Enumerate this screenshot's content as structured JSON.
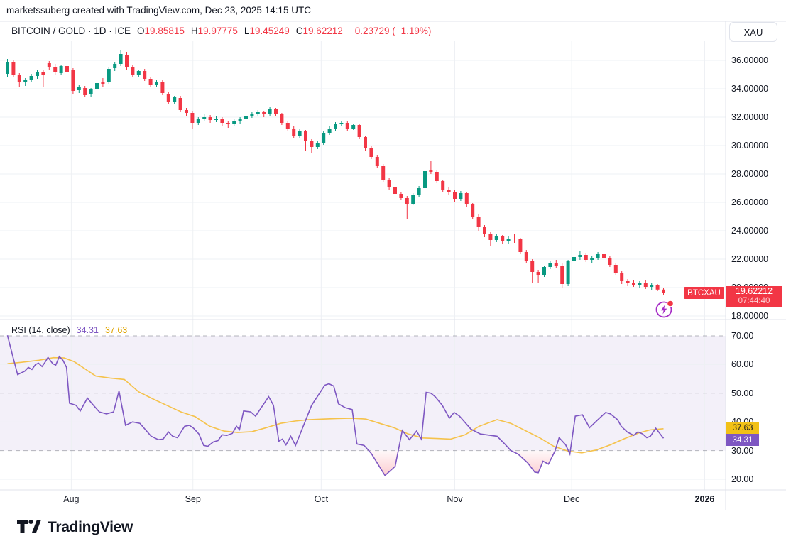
{
  "watermark": "marketssuberg created with TradingView.com, Dec 23, 2025 14:15 UTC",
  "legend": {
    "symbol": "BITCOIN / GOLD · 1D · ICE",
    "o_label": "O",
    "o": "19.85815",
    "h_label": "H",
    "h": "19.97775",
    "l_label": "L",
    "l": "19.45249",
    "c_label": "C",
    "c": "19.62212",
    "change": "−0.23729 (−1.19%)"
  },
  "price_axis": {
    "unit_button": "XAU",
    "symbol_pill": "BTCXAU",
    "last_price": "19.62212",
    "countdown": "07:44:40"
  },
  "rsi_pane": {
    "title": "RSI (14, close)",
    "value": "34.31",
    "ma_value": "37.63"
  },
  "footer": {
    "brand": "TradingView"
  },
  "colors": {
    "up": "#089981",
    "down": "#F23645",
    "rsi_line": "#7E57C2",
    "rsi_ma_line": "#F5C24B",
    "rsi_band_fill": "rgba(126,87,194,0.09)",
    "grid": "#EEF0F4",
    "border": "#E0E3EB",
    "price_line": "#F23645",
    "text": "#131722"
  },
  "chart_data": {
    "type": "candlestick_with_rsi",
    "symbol": "BITCOIN / GOLD",
    "interval": "1D",
    "exchange": "ICE",
    "last_close": 19.62212,
    "price_axis_ticks": [
      "36.00000",
      "34.00000",
      "32.00000",
      "30.00000",
      "28.00000",
      "26.00000",
      "24.00000",
      "22.00000",
      "20.00000",
      "18.00000"
    ],
    "rsi_axis_ticks": [
      "70.00",
      "60.00",
      "50.00",
      "40.00",
      "30.00",
      "20.00"
    ],
    "time_axis": [
      {
        "text": "Aug",
        "i": 10.7,
        "bold": false
      },
      {
        "text": "Sep",
        "i": 31.1,
        "bold": false
      },
      {
        "text": "Oct",
        "i": 52.6,
        "bold": false
      },
      {
        "text": "Nov",
        "i": 75.0,
        "bold": false
      },
      {
        "text": "Dec",
        "i": 94.6,
        "bold": false
      },
      {
        "text": "2026",
        "i": 116.9,
        "bold": true
      }
    ],
    "candles": [
      [
        35.05,
        36.1,
        34.85,
        35.85
      ],
      [
        35.85,
        36.05,
        34.8,
        35.0
      ],
      [
        35.0,
        35.1,
        34.15,
        34.45
      ],
      [
        34.45,
        34.75,
        34.2,
        34.6
      ],
      [
        34.6,
        35.05,
        34.45,
        34.9
      ],
      [
        34.9,
        35.3,
        34.7,
        35.15
      ],
      [
        35.15,
        35.35,
        34.15,
        35.0
      ],
      [
        35.8,
        35.95,
        35.3,
        35.5
      ],
      [
        35.55,
        35.75,
        35.0,
        35.2
      ],
      [
        35.1,
        35.7,
        34.95,
        35.6
      ],
      [
        35.6,
        35.75,
        35.05,
        35.2
      ],
      [
        35.3,
        35.45,
        33.6,
        33.85
      ],
      [
        33.9,
        34.25,
        33.7,
        34.1
      ],
      [
        34.05,
        34.2,
        33.4,
        33.55
      ],
      [
        33.6,
        34.05,
        33.45,
        33.95
      ],
      [
        34.0,
        34.5,
        33.85,
        34.4
      ],
      [
        34.45,
        34.75,
        34.1,
        34.35
      ],
      [
        34.5,
        35.5,
        34.35,
        35.4
      ],
      [
        35.45,
        35.85,
        35.25,
        35.75
      ],
      [
        35.75,
        36.75,
        35.6,
        36.45
      ],
      [
        36.4,
        36.6,
        35.3,
        35.5
      ],
      [
        35.5,
        35.65,
        34.8,
        34.95
      ],
      [
        34.95,
        35.35,
        34.8,
        35.25
      ],
      [
        35.25,
        35.4,
        34.55,
        34.7
      ],
      [
        34.7,
        34.85,
        34.1,
        34.25
      ],
      [
        34.25,
        34.6,
        34.1,
        34.5
      ],
      [
        34.5,
        34.6,
        33.55,
        33.7
      ],
      [
        33.65,
        33.8,
        32.95,
        33.1
      ],
      [
        33.1,
        33.5,
        32.95,
        33.4
      ],
      [
        33.35,
        33.5,
        32.35,
        32.5
      ],
      [
        32.5,
        32.65,
        32.05,
        32.3
      ],
      [
        32.3,
        32.4,
        31.15,
        31.6
      ],
      [
        31.6,
        32.0,
        31.45,
        31.9
      ],
      [
        31.9,
        32.2,
        31.75,
        32.0
      ],
      [
        32.0,
        32.15,
        31.6,
        31.8
      ],
      [
        31.8,
        32.1,
        31.65,
        31.9
      ],
      [
        31.9,
        32.0,
        31.4,
        31.6
      ],
      [
        31.6,
        31.75,
        31.25,
        31.5
      ],
      [
        31.5,
        31.85,
        31.35,
        31.7
      ],
      [
        31.7,
        32.0,
        31.55,
        31.85
      ],
      [
        31.85,
        32.25,
        31.7,
        32.1
      ],
      [
        32.1,
        32.35,
        31.95,
        32.2
      ],
      [
        32.2,
        32.5,
        32.05,
        32.35
      ],
      [
        32.35,
        32.45,
        32.0,
        32.2
      ],
      [
        32.2,
        32.7,
        32.05,
        32.55
      ],
      [
        32.55,
        32.65,
        32.05,
        32.2
      ],
      [
        32.2,
        32.3,
        31.45,
        31.6
      ],
      [
        31.6,
        31.75,
        31.05,
        31.2
      ],
      [
        31.2,
        31.35,
        30.5,
        30.7
      ],
      [
        30.7,
        31.15,
        30.55,
        31.0
      ],
      [
        31.0,
        31.1,
        29.6,
        30.3
      ],
      [
        30.3,
        30.45,
        29.5,
        29.9
      ],
      [
        29.9,
        30.35,
        29.75,
        30.15
      ],
      [
        30.15,
        31.0,
        30.05,
        30.9
      ],
      [
        30.9,
        31.35,
        30.75,
        31.2
      ],
      [
        31.2,
        31.65,
        31.05,
        31.5
      ],
      [
        31.5,
        31.75,
        31.35,
        31.6
      ],
      [
        31.6,
        31.7,
        31.05,
        31.2
      ],
      [
        31.2,
        31.55,
        31.1,
        31.45
      ],
      [
        31.45,
        31.55,
        30.45,
        30.6
      ],
      [
        30.6,
        30.7,
        29.65,
        29.8
      ],
      [
        29.8,
        29.95,
        29.05,
        29.2
      ],
      [
        29.2,
        29.35,
        28.4,
        28.55
      ],
      [
        28.55,
        28.7,
        27.45,
        27.6
      ],
      [
        27.6,
        27.75,
        26.9,
        27.05
      ],
      [
        27.05,
        27.2,
        26.45,
        26.6
      ],
      [
        26.6,
        26.75,
        26.15,
        26.3
      ],
      [
        26.3,
        26.45,
        24.8,
        25.9
      ],
      [
        25.9,
        26.65,
        25.8,
        26.5
      ],
      [
        26.5,
        27.15,
        26.4,
        27.0
      ],
      [
        27.0,
        28.5,
        26.9,
        28.2
      ],
      [
        28.25,
        28.9,
        28.0,
        28.15
      ],
      [
        28.15,
        28.25,
        27.35,
        27.5
      ],
      [
        27.5,
        27.6,
        26.75,
        26.9
      ],
      [
        26.9,
        27.1,
        26.55,
        26.7
      ],
      [
        26.7,
        26.9,
        26.05,
        26.25
      ],
      [
        26.25,
        26.8,
        26.1,
        26.65
      ],
      [
        26.65,
        26.75,
        25.7,
        25.85
      ],
      [
        25.85,
        25.95,
        24.85,
        25.0
      ],
      [
        25.0,
        25.15,
        23.95,
        24.3
      ],
      [
        24.3,
        24.4,
        23.55,
        23.75
      ],
      [
        23.75,
        23.9,
        22.95,
        23.35
      ],
      [
        23.35,
        23.75,
        23.2,
        23.6
      ],
      [
        23.6,
        23.7,
        23.1,
        23.25
      ],
      [
        23.25,
        23.65,
        23.05,
        23.45
      ],
      [
        23.45,
        23.75,
        23.15,
        23.4
      ],
      [
        23.4,
        23.5,
        22.35,
        22.5
      ],
      [
        22.5,
        22.65,
        21.75,
        21.9
      ],
      [
        21.9,
        22.0,
        20.35,
        21.1
      ],
      [
        21.1,
        21.25,
        20.3,
        20.9
      ],
      [
        20.9,
        21.55,
        20.75,
        21.45
      ],
      [
        21.45,
        21.9,
        21.3,
        21.75
      ],
      [
        21.75,
        21.95,
        21.4,
        21.55
      ],
      [
        21.55,
        21.7,
        19.95,
        20.25
      ],
      [
        20.25,
        21.95,
        20.1,
        21.85
      ],
      [
        21.85,
        22.3,
        21.7,
        22.15
      ],
      [
        22.15,
        22.6,
        21.95,
        22.3
      ],
      [
        22.3,
        22.45,
        21.8,
        21.95
      ],
      [
        21.95,
        22.2,
        21.7,
        22.1
      ],
      [
        22.1,
        22.5,
        21.95,
        22.35
      ],
      [
        22.35,
        22.55,
        21.9,
        22.05
      ],
      [
        22.05,
        22.2,
        21.45,
        21.6
      ],
      [
        21.6,
        21.75,
        20.9,
        21.05
      ],
      [
        21.05,
        21.2,
        20.25,
        20.45
      ],
      [
        20.45,
        20.6,
        20.1,
        20.3
      ],
      [
        20.3,
        20.55,
        20.05,
        20.2
      ],
      [
        20.2,
        20.45,
        20.0,
        20.35
      ],
      [
        20.35,
        20.5,
        19.9,
        20.05
      ],
      [
        20.05,
        20.3,
        19.85,
        20.15
      ],
      [
        20.15,
        20.25,
        19.75,
        19.86
      ],
      [
        19.86,
        19.98,
        19.45,
        19.62
      ]
    ],
    "rsi": {
      "period": 14,
      "source": "close",
      "last": 34.31,
      "ma_last": 37.63,
      "levels": {
        "upper": 70,
        "middle": 50,
        "lower": 30
      },
      "points": [
        [
          0,
          70.2
        ],
        [
          1,
          62
        ],
        [
          1.7,
          56.5
        ],
        [
          2.9,
          57.7
        ],
        [
          3.5,
          59
        ],
        [
          4.1,
          58.3
        ],
        [
          4.7,
          60
        ],
        [
          5.2,
          60.5
        ],
        [
          5.8,
          59.3
        ],
        [
          6.3,
          60.8
        ],
        [
          6.8,
          62.5
        ],
        [
          7.6,
          60.3
        ],
        [
          8.1,
          59.8
        ],
        [
          8.7,
          62.8
        ],
        [
          9.3,
          61.5
        ],
        [
          9.9,
          59
        ],
        [
          10.4,
          46.5
        ],
        [
          11.5,
          45.8
        ],
        [
          12.2,
          43.8
        ],
        [
          13.4,
          48.3
        ],
        [
          14.2,
          46.3
        ],
        [
          15.4,
          43.5
        ],
        [
          16.6,
          42.8
        ],
        [
          17.8,
          43.5
        ],
        [
          18.7,
          50.8
        ],
        [
          19.8,
          38.8
        ],
        [
          21,
          40
        ],
        [
          22.2,
          39.5
        ],
        [
          24.1,
          35
        ],
        [
          25.3,
          33.8
        ],
        [
          26.1,
          34
        ],
        [
          27,
          36.5
        ],
        [
          27.7,
          35
        ],
        [
          28.5,
          34.5
        ],
        [
          29.7,
          38.5
        ],
        [
          30.5,
          38.8
        ],
        [
          31.2,
          37.8
        ],
        [
          32.1,
          35.8
        ],
        [
          32.9,
          31.8
        ],
        [
          33.6,
          31.5
        ],
        [
          34.5,
          33
        ],
        [
          35.3,
          33.5
        ],
        [
          36,
          35.5
        ],
        [
          36.8,
          35.3
        ],
        [
          37.7,
          36
        ],
        [
          38.4,
          38.5
        ],
        [
          38.9,
          37.3
        ],
        [
          39.6,
          43.8
        ],
        [
          40.8,
          43.5
        ],
        [
          41.6,
          42
        ],
        [
          43.8,
          48.8
        ],
        [
          44.6,
          45.8
        ],
        [
          45.5,
          33.3
        ],
        [
          46.1,
          34
        ],
        [
          46.7,
          32
        ],
        [
          47.5,
          35
        ],
        [
          48.3,
          31.8
        ],
        [
          49.4,
          37.5
        ],
        [
          51,
          45.8
        ],
        [
          53.2,
          52.8
        ],
        [
          53.9,
          53.3
        ],
        [
          54.7,
          52.5
        ],
        [
          55.5,
          46.3
        ],
        [
          56.6,
          45
        ],
        [
          57.8,
          44.3
        ],
        [
          58.6,
          32.3
        ],
        [
          59.8,
          31.8
        ],
        [
          61,
          29
        ],
        [
          63.3,
          21.3
        ],
        [
          65,
          24.5
        ],
        [
          66.2,
          37
        ],
        [
          67.4,
          33.8
        ],
        [
          68.6,
          36.8
        ],
        [
          69.4,
          34
        ],
        [
          70.2,
          50.3
        ],
        [
          71,
          50
        ],
        [
          71.7,
          48.8
        ],
        [
          72.9,
          45.8
        ],
        [
          74.1,
          41.3
        ],
        [
          74.9,
          43.3
        ],
        [
          75.8,
          42
        ],
        [
          77.7,
          37.5
        ],
        [
          79.3,
          35.8
        ],
        [
          82.1,
          35
        ],
        [
          83.3,
          32.5
        ],
        [
          84.4,
          30
        ],
        [
          85.6,
          28.8
        ],
        [
          87.2,
          25.8
        ],
        [
          88.4,
          22.5
        ],
        [
          89,
          22.3
        ],
        [
          89.8,
          26.3
        ],
        [
          90.7,
          25.3
        ],
        [
          91.8,
          29.8
        ],
        [
          92.5,
          34.5
        ],
        [
          93.6,
          32
        ],
        [
          94.3,
          28.8
        ],
        [
          95.2,
          42
        ],
        [
          96.4,
          42.5
        ],
        [
          97.6,
          38
        ],
        [
          99,
          40.8
        ],
        [
          100.3,
          43.3
        ],
        [
          101.1,
          42.8
        ],
        [
          102.3,
          40.8
        ],
        [
          102.9,
          38.5
        ],
        [
          103.9,
          36.5
        ],
        [
          105,
          35.3
        ],
        [
          105.7,
          36.5
        ],
        [
          106.5,
          35.8
        ],
        [
          107.2,
          34.5
        ],
        [
          107.8,
          35
        ],
        [
          108.7,
          37.8
        ],
        [
          110,
          34.31
        ]
      ],
      "ma_points": [
        [
          0,
          60.3
        ],
        [
          2.4,
          60.8
        ],
        [
          5.3,
          61.5
        ],
        [
          7.7,
          62.4
        ],
        [
          9.5,
          62.3
        ],
        [
          11.2,
          61
        ],
        [
          13,
          58.5
        ],
        [
          14.8,
          56
        ],
        [
          17.2,
          55.3
        ],
        [
          19.6,
          54.8
        ],
        [
          22,
          50.5
        ],
        [
          24.4,
          48
        ],
        [
          26.7,
          45.8
        ],
        [
          29.1,
          43.5
        ],
        [
          31.5,
          41.8
        ],
        [
          33.9,
          38.5
        ],
        [
          36.3,
          36.8
        ],
        [
          38.6,
          36.3
        ],
        [
          41,
          36.6
        ],
        [
          43.4,
          38
        ],
        [
          45.8,
          39.5
        ],
        [
          48.2,
          40.3
        ],
        [
          50.5,
          40.8
        ],
        [
          52.9,
          41
        ],
        [
          55.3,
          41.2
        ],
        [
          57.7,
          41.3
        ],
        [
          60.1,
          41
        ],
        [
          62.4,
          39.5
        ],
        [
          64.8,
          38
        ],
        [
          67.2,
          35.8
        ],
        [
          69.6,
          34.4
        ],
        [
          72,
          34.2
        ],
        [
          74.3,
          34
        ],
        [
          76.7,
          35.5
        ],
        [
          79.1,
          38.5
        ],
        [
          82.1,
          40.8
        ],
        [
          84.4,
          39.5
        ],
        [
          86.8,
          37
        ],
        [
          89.2,
          34.5
        ],
        [
          91.6,
          31.5
        ],
        [
          94,
          29.8
        ],
        [
          96.3,
          29.2
        ],
        [
          98.7,
          30.2
        ],
        [
          101.1,
          32
        ],
        [
          103.5,
          34.2
        ],
        [
          105.9,
          36.2
        ],
        [
          107.7,
          37.2
        ],
        [
          110,
          37.63
        ]
      ]
    }
  }
}
